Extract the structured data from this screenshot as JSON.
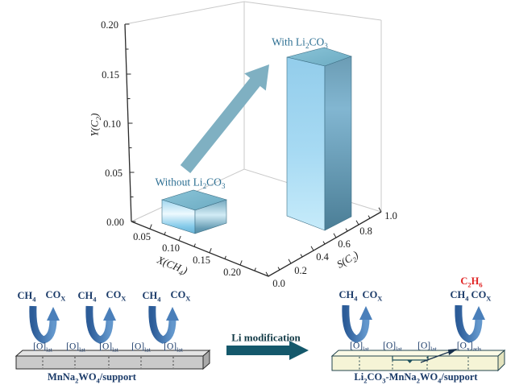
{
  "chart_data": {
    "type": "bar",
    "projection": "3d",
    "title": "",
    "grid": false,
    "legend": false,
    "axes": {
      "z": {
        "label": "Y(C_{2})",
        "ticks": [
          "0.00",
          "0.05",
          "0.10",
          "0.15",
          "0.20"
        ],
        "range": [
          0,
          0.2
        ]
      },
      "x": {
        "label": "X(CH_{4})",
        "ticks": [
          "0.05",
          "0.10",
          "0.15",
          "0.20"
        ],
        "range": [
          0,
          0.225
        ]
      },
      "y": {
        "label": "S(C_{2})",
        "ticks": [
          "0.0",
          "0.2",
          "0.4",
          "0.6",
          "0.8",
          "1.0"
        ],
        "range": [
          0,
          1.0
        ]
      }
    },
    "bars": [
      {
        "label": "Without Li_{2}CO_{3}",
        "x_ch4": 0.08,
        "s_c2": 0.35,
        "y_c2": 0.02
      },
      {
        "label": "With Li_{2}CO_{3}",
        "x_ch4": 0.17,
        "s_c2": 0.8,
        "y_c2": 0.16
      }
    ],
    "annotation": "large upward arrow from the Without Li2CO3 bar to the With Li2CO3 bar"
  },
  "mechanism": {
    "left": {
      "pairs": [
        {
          "reactant": "CH_{4}",
          "product": "CO_{X}"
        },
        {
          "reactant": "CH_{4}",
          "product": "CO_{X}"
        },
        {
          "reactant": "CH_{4}",
          "product": "CO_{X}"
        }
      ],
      "sites": [
        "[O]_{lat}",
        "[O]_{lat}",
        "[O]_{lat}",
        "[O]_{lat}",
        "[O]_{lat}"
      ],
      "support": "MnNa_{2}WO_{4}/support"
    },
    "transition": {
      "label": "Li modification"
    },
    "right": {
      "highlight_product": "C_{2}H_{6}",
      "pairs": [
        {
          "reactant": "CH_{4}",
          "product": "CO_{X}"
        },
        {
          "reactant": "CH_{4}",
          "product": "CO_{X}"
        }
      ],
      "sites": [
        "[O]_{lat}",
        "[O]_{lat}",
        "[O]_{lat}",
        "[O_{x}]_{ads}"
      ],
      "support": "Li_{2}CO_{3}-MnNa_{2}WO_{4}/support"
    }
  },
  "colors": {
    "bar_front": "#a5daf3",
    "bar_side": "#5f93ad",
    "bar_top": "#7cb8ce",
    "improvement_arrow": "#7fb0c2",
    "u_arrow": "#3f74ae",
    "li_arrow": "#14586b",
    "navy_text": "#1a3a68",
    "teal_label": "#2e7093",
    "product_red": "#e02222",
    "slab_gray": "#cacaca",
    "slab_yellow": "#f5f4d6"
  }
}
